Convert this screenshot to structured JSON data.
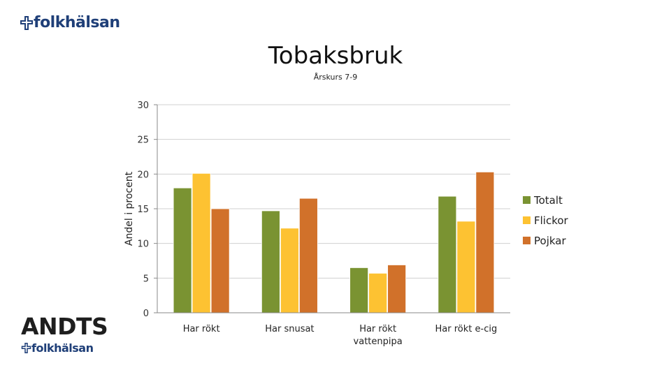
{
  "brand": {
    "top_logo_text": "folkhälsan",
    "bottom_logo_text": "folkhälsan",
    "andts_text": "ANDTS",
    "logo_color": "#1f3f78"
  },
  "chart_data": {
    "type": "bar",
    "title": "Tobaksbruk",
    "subtitle": "Årskurs 7-9",
    "ylabel": "Andel i procent",
    "xlabel": "",
    "ylim": [
      0,
      30
    ],
    "yticks": [
      "0",
      "5",
      "10",
      "15",
      "20",
      "25",
      "30"
    ],
    "grid": true,
    "legend_position": "right",
    "categories": [
      "Har rökt",
      "Har snusat",
      "Har rökt vattenpipa",
      "Har rökt e-cig"
    ],
    "series": [
      {
        "name": "Totalt",
        "color": "#7a9332",
        "values": [
          18,
          14.7,
          6.5,
          16.8
        ]
      },
      {
        "name": "Flickor",
        "color": "#fdc232",
        "values": [
          20.1,
          12.2,
          5.7,
          13.2
        ]
      },
      {
        "name": "Pojkar",
        "color": "#d1712a",
        "values": [
          15,
          16.5,
          6.9,
          20.3
        ]
      }
    ]
  }
}
